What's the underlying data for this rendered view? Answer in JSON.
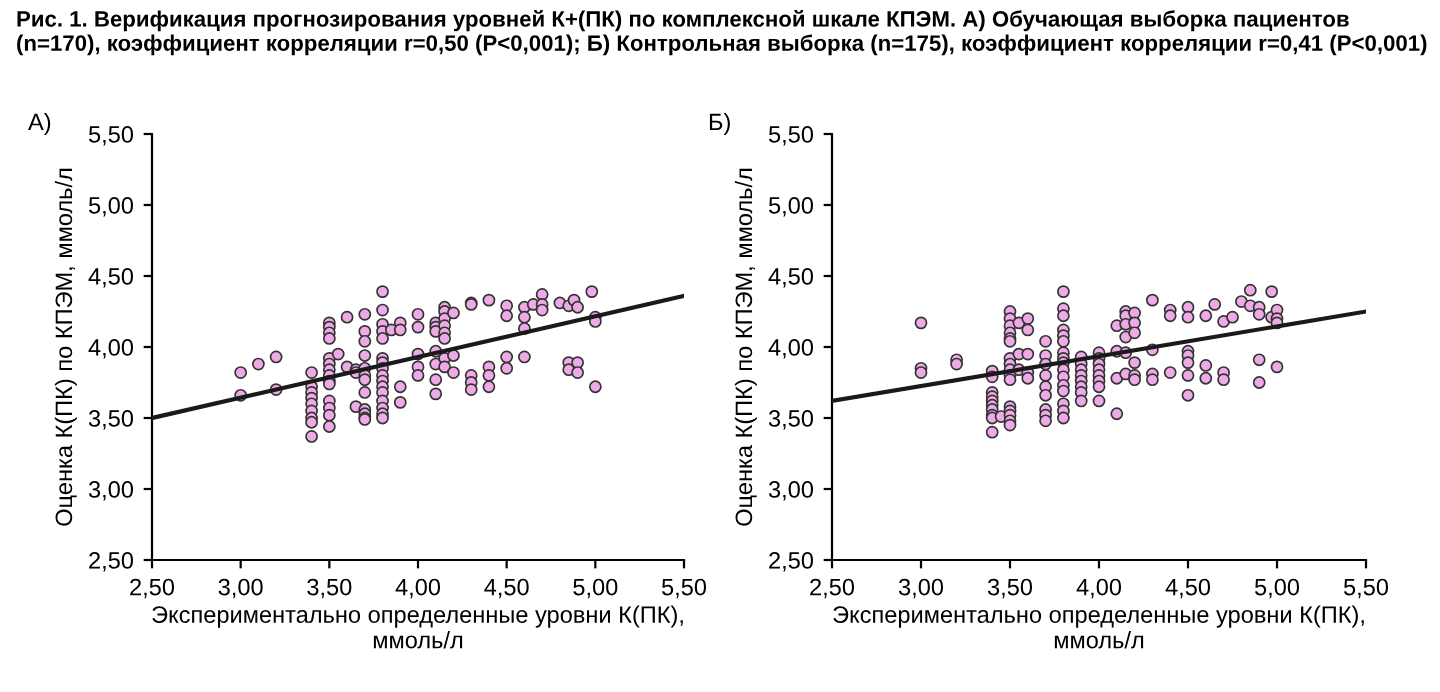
{
  "chart_data": [
    {
      "type": "scatter",
      "title": "А)",
      "annotations": [
        "Рис. 1. Верификация прогнозирования уровней К+(ПК) по комплексной шкале КПЭМ. А) Обучающая выборка пациентов (n=170), коэффициент корреляции r=0,50 (P<0,001); Б) Контрольная выборка (n=175), коэффициент корреляции r=0,41 (P<0,001)"
      ],
      "xlabel": "Экспериментально определенные уровни К(ПК),\nммоль/л",
      "ylabel": "Оценка К(ПК) по КПЭМ, ммоль/л",
      "xlim": [
        2.5,
        5.5
      ],
      "ylim": [
        2.5,
        5.5
      ],
      "xticks": [
        {
          "value": 2.5,
          "label": "2,50"
        },
        {
          "value": 3.0,
          "label": "3,00"
        },
        {
          "value": 3.5,
          "label": "3,50"
        },
        {
          "value": 4.0,
          "label": "4,00"
        },
        {
          "value": 4.5,
          "label": "4,50"
        },
        {
          "value": 5.0,
          "label": "5,00"
        },
        {
          "value": 5.5,
          "label": "5,50"
        }
      ],
      "yticks": [
        {
          "value": 2.5,
          "label": "2,50"
        },
        {
          "value": 3.0,
          "label": "3,00"
        },
        {
          "value": 3.5,
          "label": "3,50"
        },
        {
          "value": 4.0,
          "label": "4,00"
        },
        {
          "value": 4.5,
          "label": "4,50"
        },
        {
          "value": 5.0,
          "label": "5,00"
        },
        {
          "value": 5.5,
          "label": "5,50"
        }
      ],
      "grid": false,
      "legend": false,
      "marker": "circle",
      "series": [
        {
          "color": "#eeaae6",
          "x": [
            3.0,
            3.0,
            3.1,
            3.2,
            3.2,
            3.4,
            3.4,
            3.4,
            3.4,
            3.4,
            3.4,
            3.4,
            3.4,
            3.4,
            3.5,
            3.5,
            3.5,
            3.5,
            3.5,
            3.5,
            3.5,
            3.5,
            3.5,
            3.5,
            3.5,
            3.5,
            3.5,
            3.5,
            3.55,
            3.6,
            3.6,
            3.65,
            3.65,
            3.65,
            3.7,
            3.7,
            3.7,
            3.7,
            3.7,
            3.7,
            3.7,
            3.7,
            3.7,
            3.7,
            3.7,
            3.7,
            3.8,
            3.8,
            3.8,
            3.8,
            3.8,
            3.8,
            3.8,
            3.8,
            3.8,
            3.8,
            3.8,
            3.8,
            3.8,
            3.8,
            3.8,
            3.8,
            3.85,
            3.9,
            3.9,
            3.9,
            3.9,
            4.0,
            4.0,
            4.0,
            4.0,
            4.0,
            4.1,
            4.1,
            4.1,
            4.1,
            4.1,
            4.1,
            4.1,
            4.15,
            4.15,
            4.15,
            4.15,
            4.15,
            4.15,
            4.15,
            4.15,
            4.2,
            4.2,
            4.2,
            4.3,
            4.3,
            4.3,
            4.3,
            4.3,
            4.4,
            4.4,
            4.4,
            4.4,
            4.5,
            4.5,
            4.5,
            4.5,
            4.6,
            4.6,
            4.6,
            4.6,
            4.65,
            4.7,
            4.7,
            4.7,
            4.8,
            4.85,
            4.85,
            4.85,
            4.88,
            4.9,
            4.9,
            4.9,
            4.98,
            5.0,
            5.0,
            5.0
          ],
          "values": [
            3.82,
            3.66,
            3.88,
            3.93,
            3.7,
            3.82,
            3.72,
            3.68,
            3.64,
            3.6,
            3.55,
            3.5,
            3.47,
            3.37,
            4.17,
            4.14,
            4.1,
            4.06,
            3.92,
            3.88,
            3.84,
            3.8,
            3.76,
            3.74,
            3.62,
            3.57,
            3.52,
            3.44,
            3.95,
            4.21,
            3.86,
            3.84,
            3.82,
            3.58,
            4.23,
            4.11,
            4.04,
            3.94,
            3.85,
            3.8,
            3.77,
            3.68,
            3.56,
            3.53,
            3.5,
            3.49,
            4.39,
            4.26,
            4.16,
            4.11,
            4.06,
            3.92,
            3.89,
            3.85,
            3.8,
            3.76,
            3.72,
            3.68,
            3.62,
            3.57,
            3.53,
            3.5,
            4.12,
            4.17,
            4.12,
            3.72,
            3.61,
            4.23,
            4.14,
            3.95,
            3.86,
            3.8,
            4.17,
            4.14,
            4.11,
            3.97,
            3.88,
            3.77,
            3.67,
            4.28,
            4.25,
            4.2,
            4.15,
            4.1,
            4.06,
            3.92,
            3.86,
            4.24,
            3.94,
            3.82,
            4.31,
            4.3,
            3.8,
            3.75,
            3.7,
            4.33,
            3.86,
            3.8,
            3.72,
            4.29,
            4.22,
            3.93,
            3.85,
            4.28,
            4.21,
            4.13,
            3.93,
            4.3,
            4.37,
            4.3,
            4.26,
            4.31,
            4.29,
            3.89,
            3.84,
            4.33,
            4.28,
            3.89,
            3.82,
            4.39,
            4.21,
            4.18,
            3.72
          ]
        },
        {
          "type": "line",
          "color": "#1a1a1a",
          "marker": "none",
          "x": [
            2.5,
            5.5
          ],
          "values": [
            3.5,
            4.36
          ]
        }
      ]
    },
    {
      "type": "scatter",
      "title": "Б)",
      "xlabel": "Экспериментально определенные уровни К(ПК),\nммоль/л",
      "ylabel": "Оценка К(ПК) по КПЭМ, ммоль/л",
      "xlim": [
        2.5,
        5.5
      ],
      "ylim": [
        2.5,
        5.5
      ],
      "xticks": [
        {
          "value": 2.5,
          "label": "2,50"
        },
        {
          "value": 3.0,
          "label": "3,00"
        },
        {
          "value": 3.5,
          "label": "3,50"
        },
        {
          "value": 4.0,
          "label": "4,00"
        },
        {
          "value": 4.5,
          "label": "4,50"
        },
        {
          "value": 5.0,
          "label": "5,00"
        },
        {
          "value": 5.5,
          "label": "5,50"
        }
      ],
      "yticks": [
        {
          "value": 2.5,
          "label": "2,50"
        },
        {
          "value": 3.0,
          "label": "3,00"
        },
        {
          "value": 3.5,
          "label": "3,50"
        },
        {
          "value": 4.0,
          "label": "4,00"
        },
        {
          "value": 4.5,
          "label": "4,50"
        },
        {
          "value": 5.0,
          "label": "5,00"
        },
        {
          "value": 5.5,
          "label": "5,50"
        }
      ],
      "grid": false,
      "legend": false,
      "marker": "circle",
      "series": [
        {
          "color": "#eeaae6",
          "x": [
            3.0,
            3.0,
            3.0,
            3.2,
            3.2,
            3.4,
            3.4,
            3.4,
            3.4,
            3.4,
            3.4,
            3.4,
            3.4,
            3.4,
            3.4,
            3.45,
            3.5,
            3.5,
            3.5,
            3.5,
            3.5,
            3.5,
            3.5,
            3.5,
            3.5,
            3.5,
            3.5,
            3.5,
            3.5,
            3.5,
            3.5,
            3.5,
            3.55,
            3.55,
            3.55,
            3.6,
            3.6,
            3.6,
            3.6,
            3.6,
            3.7,
            3.7,
            3.7,
            3.7,
            3.7,
            3.7,
            3.7,
            3.7,
            3.7,
            3.8,
            3.8,
            3.8,
            3.8,
            3.8,
            3.8,
            3.8,
            3.8,
            3.8,
            3.8,
            3.8,
            3.8,
            3.8,
            3.8,
            3.8,
            3.8,
            3.9,
            3.9,
            3.9,
            3.9,
            3.9,
            3.9,
            3.9,
            3.9,
            4.0,
            4.0,
            4.0,
            4.0,
            4.0,
            4.0,
            4.0,
            4.0,
            4.1,
            4.1,
            4.1,
            4.1,
            4.15,
            4.15,
            4.15,
            4.15,
            4.15,
            4.15,
            4.2,
            4.2,
            4.2,
            4.2,
            4.2,
            4.2,
            4.3,
            4.3,
            4.3,
            4.3,
            4.4,
            4.4,
            4.4,
            4.5,
            4.5,
            4.5,
            4.5,
            4.5,
            4.5,
            4.5,
            4.6,
            4.6,
            4.6,
            4.65,
            4.7,
            4.7,
            4.7,
            4.75,
            4.8,
            4.85,
            4.85,
            4.9,
            4.9,
            4.9,
            4.9,
            4.97,
            4.97,
            5.0,
            5.0,
            5.0,
            5.0
          ],
          "values": [
            4.17,
            3.85,
            3.82,
            3.91,
            3.88,
            3.83,
            3.79,
            3.68,
            3.65,
            3.62,
            3.59,
            3.56,
            3.52,
            3.5,
            3.4,
            3.51,
            4.25,
            4.2,
            4.15,
            4.1,
            4.06,
            4.04,
            3.92,
            3.88,
            3.84,
            3.8,
            3.77,
            3.58,
            3.55,
            3.52,
            3.48,
            3.45,
            4.17,
            3.95,
            3.84,
            4.2,
            4.12,
            3.95,
            3.82,
            3.78,
            4.04,
            3.94,
            3.88,
            3.8,
            3.72,
            3.66,
            3.56,
            3.52,
            3.48,
            4.39,
            4.27,
            4.22,
            4.12,
            4.08,
            4.04,
            3.96,
            3.92,
            3.89,
            3.84,
            3.79,
            3.73,
            3.69,
            3.6,
            3.55,
            3.5,
            3.93,
            3.88,
            3.84,
            3.8,
            3.76,
            3.72,
            3.68,
            3.62,
            3.96,
            3.92,
            3.88,
            3.84,
            3.8,
            3.76,
            3.72,
            3.62,
            4.15,
            3.97,
            3.78,
            3.53,
            4.25,
            4.22,
            4.16,
            4.07,
            3.96,
            3.81,
            4.24,
            4.17,
            4.1,
            3.89,
            3.8,
            3.77,
            4.33,
            3.98,
            3.81,
            3.77,
            4.26,
            4.22,
            3.82,
            4.28,
            4.21,
            3.97,
            3.94,
            3.89,
            3.8,
            3.66,
            4.22,
            3.87,
            3.78,
            4.3,
            4.18,
            3.82,
            3.77,
            4.21,
            4.32,
            4.4,
            4.29,
            4.28,
            4.23,
            3.91,
            3.75,
            4.39,
            4.21,
            4.26,
            4.2,
            4.17,
            3.86
          ]
        },
        {
          "type": "line",
          "color": "#1a1a1a",
          "marker": "none",
          "x": [
            2.5,
            5.5
          ],
          "values": [
            3.62,
            4.25
          ]
        }
      ]
    }
  ]
}
